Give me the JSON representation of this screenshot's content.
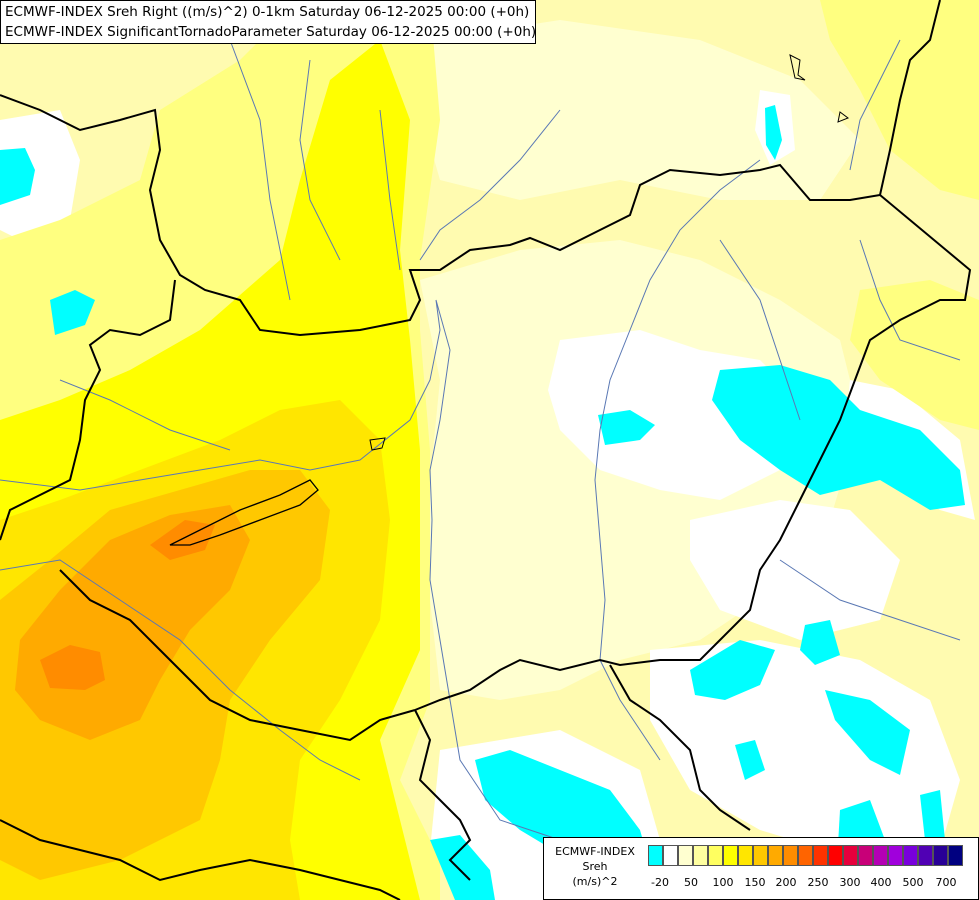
{
  "header": {
    "line1": "ECMWF-INDEX Sreh Right ((m/s)^2) 0-1km Saturday 06-12-2025 00:00 (+0h)",
    "line2": "ECMWF-INDEX SignificantTornadoParameter Saturday 06-12-2025 00:00 (+0h)"
  },
  "legend": {
    "line1": "ECMWF-INDEX",
    "line2": "Sreh",
    "line3": "(m/s)^2",
    "colors": [
      "#00ffff",
      "#ffffff",
      "#ffffd0",
      "#ffffa0",
      "#ffff60",
      "#ffff00",
      "#ffe600",
      "#ffc800",
      "#ffaa00",
      "#ff8c00",
      "#ff6400",
      "#ff3200",
      "#ff0000",
      "#e6003c",
      "#c80078",
      "#b400b4",
      "#a000dc",
      "#7800dc",
      "#5000b4",
      "#280096",
      "#000080"
    ],
    "ticks": [
      "-20",
      "50",
      "100",
      "150",
      "200",
      "250",
      "300",
      "400",
      "500",
      "700"
    ]
  },
  "map": {
    "colors": {
      "background": "#fffbb0",
      "pale": "#ffffd0",
      "white": "#ffffff",
      "cyan": "#00ffff",
      "light_yellow": "#ffff80",
      "yellow": "#ffff00",
      "gold": "#ffe600",
      "amber": "#ffc800",
      "orange": "#ffaa00",
      "deep_orange": "#ff8c00",
      "border": "#000000",
      "river": "#5a78b4"
    }
  }
}
